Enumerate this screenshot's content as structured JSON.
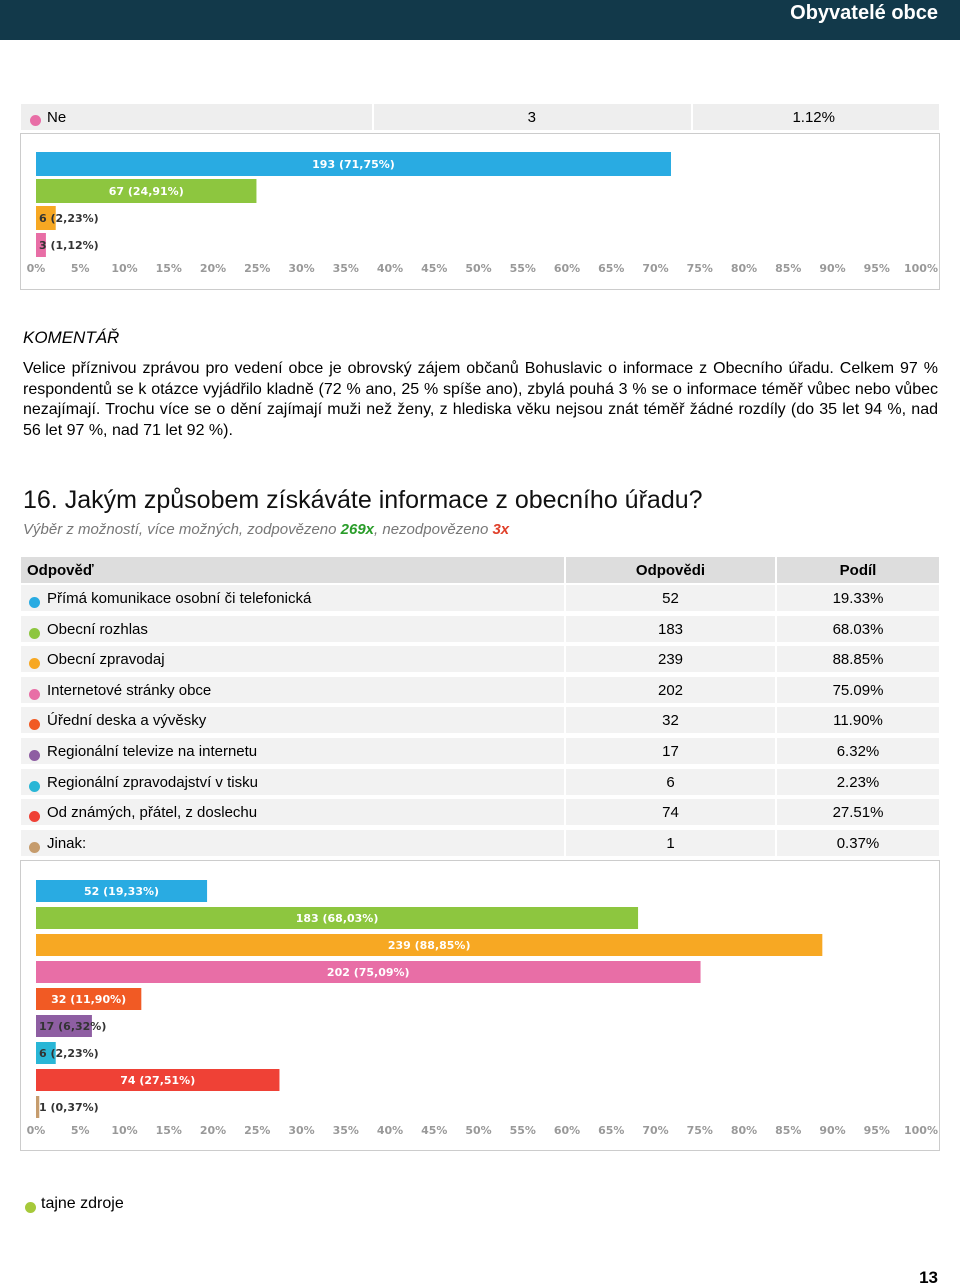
{
  "header": {
    "title": "Obyvatelé obce"
  },
  "top_table": {
    "row": [
      "Ne",
      "3",
      "1.12%"
    ]
  },
  "chart_data": [
    {
      "type": "bar",
      "orientation": "horizontal",
      "values": [
        71.75,
        24.91,
        2.23,
        1.12
      ],
      "value_labels": [
        "193 (71,75%)",
        "67 (24,91%)",
        "6 (2,23%)",
        "3 (1,12%)"
      ],
      "colors": [
        "#29abe2",
        "#8dc63f",
        "#f7a823",
        "#e86ea6"
      ],
      "xlim": [
        0,
        100
      ],
      "xticks": [
        {
          "value": 0,
          "label": "0%"
        },
        {
          "value": 5,
          "label": "5%"
        },
        {
          "value": 10,
          "label": "10%"
        },
        {
          "value": 15,
          "label": "15%"
        },
        {
          "value": 20,
          "label": "20%"
        },
        {
          "value": 25,
          "label": "25%"
        },
        {
          "value": 30,
          "label": "30%"
        },
        {
          "value": 35,
          "label": "35%"
        },
        {
          "value": 40,
          "label": "40%"
        },
        {
          "value": 45,
          "label": "45%"
        },
        {
          "value": 50,
          "label": "50%"
        },
        {
          "value": 55,
          "label": "55%"
        },
        {
          "value": 60,
          "label": "60%"
        },
        {
          "value": 65,
          "label": "65%"
        },
        {
          "value": 70,
          "label": "70%"
        },
        {
          "value": 75,
          "label": "75%"
        },
        {
          "value": 80,
          "label": "80%"
        },
        {
          "value": 85,
          "label": "85%"
        },
        {
          "value": 90,
          "label": "90%"
        },
        {
          "value": 95,
          "label": "95%"
        },
        {
          "value": 100,
          "label": "100%"
        }
      ]
    },
    {
      "type": "bar",
      "orientation": "horizontal",
      "values": [
        19.33,
        68.03,
        88.85,
        75.09,
        11.9,
        6.32,
        2.23,
        27.51,
        0.37
      ],
      "value_labels": [
        "52 (19,33%)",
        "183 (68,03%)",
        "239 (88,85%)",
        "202 (75,09%)",
        "32 (11,90%)",
        "17 (6,32%)",
        "6 (2,23%)",
        "74 (27,51%)",
        "1 (0,37%)"
      ],
      "colors": [
        "#29abe2",
        "#8dc63f",
        "#f7a823",
        "#e86ea6",
        "#f15a24",
        "#8e5ea2",
        "#29b6d6",
        "#ef4136",
        "#c69c6d"
      ],
      "xlim": [
        0,
        100
      ],
      "xticks": [
        {
          "value": 0,
          "label": "0%"
        },
        {
          "value": 5,
          "label": "5%"
        },
        {
          "value": 10,
          "label": "10%"
        },
        {
          "value": 15,
          "label": "15%"
        },
        {
          "value": 20,
          "label": "20%"
        },
        {
          "value": 25,
          "label": "25%"
        },
        {
          "value": 30,
          "label": "30%"
        },
        {
          "value": 35,
          "label": "35%"
        },
        {
          "value": 40,
          "label": "40%"
        },
        {
          "value": 45,
          "label": "45%"
        },
        {
          "value": 50,
          "label": "50%"
        },
        {
          "value": 55,
          "label": "55%"
        },
        {
          "value": 60,
          "label": "60%"
        },
        {
          "value": 65,
          "label": "65%"
        },
        {
          "value": 70,
          "label": "70%"
        },
        {
          "value": 75,
          "label": "75%"
        },
        {
          "value": 80,
          "label": "80%"
        },
        {
          "value": 85,
          "label": "85%"
        },
        {
          "value": 90,
          "label": "90%"
        },
        {
          "value": 95,
          "label": "95%"
        },
        {
          "value": 100,
          "label": "100%"
        }
      ]
    }
  ],
  "comment": {
    "heading": "KOMENTÁŘ",
    "text": "Velice příznivou zprávou pro vedení obce je obrovský zájem občanů Bohuslavic o informace z Obecního úřadu. Celkem 97 % respondentů se k otázce vyjádřilo kladně (72 % ano, 25 % spíše ano), zbylá pouhá 3 % se o informace téměř vůbec nebo vůbec nezajímají. Trochu více se o dění zajímají muži než ženy, z hlediska věku nejsou znát téměř žádné rozdíly (do 35 let 94 %, nad 56 let 97 %, nad 71 let 92 %)."
  },
  "question": {
    "title": "16. Jakým způsobem získáváte informace z obecního úřadu?",
    "subtitle": [
      "Výběr z možností, více možných, zodpovězeno ",
      "269x",
      ", nezodpovězeno ",
      "3x"
    ]
  },
  "table": {
    "header": [
      "Odpověď",
      "Odpovědi",
      "Podíl"
    ],
    "rows": [
      [
        "Přímá komunikace osobní či telefonická",
        "52",
        "19.33%"
      ],
      [
        "Obecní rozhlas",
        "183",
        "68.03%"
      ],
      [
        "Obecní zpravodaj",
        "239",
        "88.85%"
      ],
      [
        "Internetové stránky obce",
        "202",
        "75.09%"
      ],
      [
        "Úřední deska a vývěsky",
        "32",
        "11.90%"
      ],
      [
        "Regionální televize na internetu",
        "17",
        "6.32%"
      ],
      [
        "Regionální zpravodajství v tisku",
        "6",
        "2.23%"
      ],
      [
        "Od známých, přátel, z doslechu",
        "74",
        "27.51%"
      ],
      [
        "Jinak:",
        "1",
        "0.37%"
      ]
    ]
  },
  "footer": {
    "note": "tajne zdroje",
    "page": "13"
  }
}
